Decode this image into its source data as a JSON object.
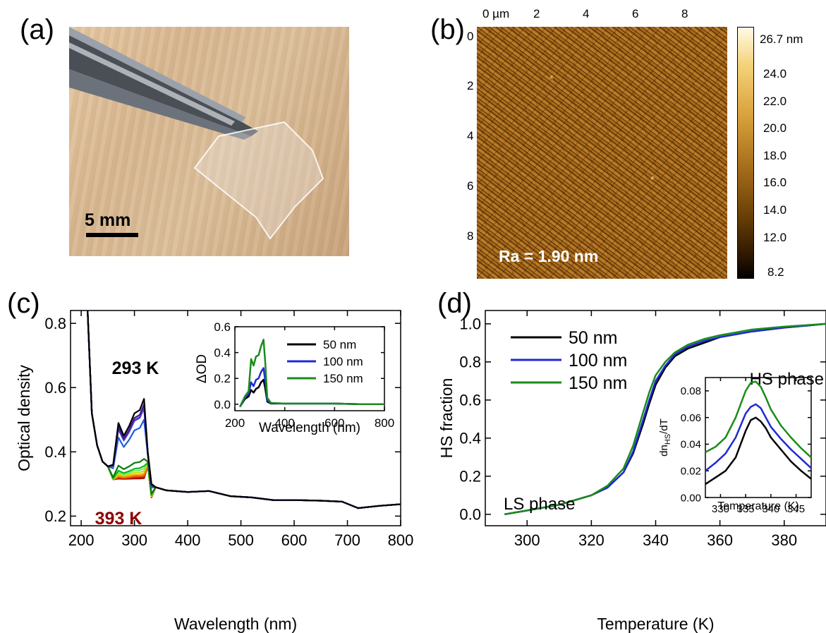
{
  "panels": {
    "a": "(a)",
    "b": "(b)",
    "c": "(c)",
    "d": "(d)"
  },
  "photo": {
    "scale_bar": "5 mm"
  },
  "afm": {
    "x_ticks": [
      "0 µm",
      "2",
      "4",
      "6",
      "8"
    ],
    "y_ticks": [
      "0",
      "2",
      "4",
      "6",
      "8"
    ],
    "colorbar_ticks": [
      "26.7 nm",
      "24.0",
      "22.0",
      "20.0",
      "18.0",
      "16.0",
      "14.0",
      "12.0",
      "8.2"
    ],
    "roughness": "Ra = 1.90 nm"
  },
  "chart_data": [
    {
      "type": "line",
      "panel": "c",
      "xlabel": "Wavelength (nm)",
      "ylabel": "Optical density",
      "xlim": [
        180,
        800
      ],
      "ylim": [
        0.17,
        0.84
      ],
      "x_ticks": [
        200,
        300,
        400,
        500,
        600,
        700,
        800
      ],
      "y_ticks": [
        0.2,
        0.4,
        0.6,
        0.8
      ],
      "annotations": [
        "293 K",
        "393 K"
      ],
      "colors": [
        "#000000",
        "#3b1a8c",
        "#6a3fd0",
        "#1f2ad6",
        "#1a5fe0",
        "#0c7a0c",
        "#18b418",
        "#6ef06e",
        "#c9e000",
        "#f0a000",
        "#e85a00",
        "#c81e00",
        "#8b0000"
      ],
      "series_peak_od": [
        0.575,
        0.555,
        0.545,
        0.54,
        0.5,
        0.37,
        0.345,
        0.335,
        0.325,
        0.315,
        0.307,
        0.3,
        0.295
      ],
      "x": [
        212,
        220,
        230,
        240,
        250,
        260,
        270,
        280,
        290,
        300,
        310,
        318,
        325,
        332,
        340,
        360,
        400,
        440,
        480,
        520,
        560,
        600,
        650,
        690,
        720,
        760,
        800
      ],
      "inset": {
        "type": "line",
        "xlabel": "Wavelength (nm)",
        "ylabel": "ΔOD",
        "xlim": [
          200,
          800
        ],
        "ylim": [
          -0.05,
          0.6
        ],
        "x_ticks": [
          200,
          400,
          600,
          800
        ],
        "y_ticks": [
          0.0,
          0.2,
          0.4,
          0.6
        ],
        "series": [
          {
            "name": "50 nm",
            "color": "#000000",
            "x": [
              220,
              240,
              255,
              265,
              275,
              285,
              295,
              305,
              315,
              322,
              330,
              345,
              400,
              500,
              600,
              700,
              800
            ],
            "values": [
              -0.02,
              0.04,
              0.06,
              0.11,
              0.09,
              0.12,
              0.13,
              0.17,
              0.19,
              0.12,
              0.02,
              0.005,
              0.005,
              0.005,
              0.005,
              0.0,
              0.0
            ]
          },
          {
            "name": "100 nm",
            "color": "#1f2ad6",
            "x": [
              220,
              240,
              255,
              265,
              275,
              285,
              295,
              305,
              315,
              322,
              330,
              345,
              400,
              500,
              600,
              700,
              800
            ],
            "values": [
              -0.02,
              0.05,
              0.08,
              0.17,
              0.14,
              0.19,
              0.2,
              0.25,
              0.28,
              0.18,
              0.03,
              0.008,
              0.005,
              0.005,
              0.005,
              0.0,
              0.0
            ]
          },
          {
            "name": "150 nm",
            "color": "#1a8c1a",
            "x": [
              220,
              240,
              255,
              265,
              275,
              285,
              295,
              305,
              315,
              322,
              330,
              345,
              400,
              500,
              600,
              700,
              800
            ],
            "values": [
              -0.02,
              0.06,
              0.1,
              0.35,
              0.3,
              0.37,
              0.38,
              0.45,
              0.5,
              0.32,
              0.05,
              0.01,
              0.005,
              0.005,
              0.005,
              0.0,
              0.0
            ]
          }
        ]
      }
    },
    {
      "type": "line",
      "panel": "d",
      "xlabel": "Temperature (K)",
      "ylabel": "HS fraction",
      "xlim": [
        287,
        393
      ],
      "ylim": [
        -0.06,
        1.07
      ],
      "x_ticks": [
        300,
        320,
        340,
        360,
        380
      ],
      "y_ticks": [
        0.0,
        0.2,
        0.4,
        0.6,
        0.8,
        1.0
      ],
      "annotations": [
        "LS phase",
        "HS phase"
      ],
      "series": [
        {
          "name": "50 nm",
          "color": "#000000",
          "x": [
            293,
            300,
            310,
            320,
            325,
            330,
            333,
            336,
            338,
            340,
            343,
            346,
            350,
            355,
            360,
            370,
            380,
            393
          ],
          "values": [
            0.0,
            0.02,
            0.05,
            0.1,
            0.14,
            0.22,
            0.32,
            0.47,
            0.58,
            0.68,
            0.77,
            0.83,
            0.87,
            0.9,
            0.93,
            0.96,
            0.98,
            1.0
          ]
        },
        {
          "name": "100 nm",
          "color": "#1f2ad6",
          "x": [
            293,
            300,
            310,
            320,
            325,
            330,
            333,
            336,
            338,
            340,
            343,
            346,
            350,
            355,
            360,
            370,
            380,
            393
          ],
          "values": [
            0.0,
            0.02,
            0.05,
            0.1,
            0.14,
            0.22,
            0.33,
            0.49,
            0.6,
            0.7,
            0.78,
            0.84,
            0.88,
            0.91,
            0.93,
            0.96,
            0.98,
            1.0
          ]
        },
        {
          "name": "150 nm",
          "color": "#1a8c1a",
          "x": [
            293,
            300,
            310,
            320,
            325,
            330,
            333,
            336,
            338,
            340,
            343,
            346,
            350,
            355,
            360,
            370,
            380,
            393
          ],
          "values": [
            0.0,
            0.02,
            0.05,
            0.1,
            0.15,
            0.24,
            0.36,
            0.53,
            0.64,
            0.73,
            0.8,
            0.85,
            0.89,
            0.92,
            0.94,
            0.97,
            0.985,
            1.0
          ]
        }
      ],
      "inset": {
        "type": "line",
        "xlabel": "Temperature (K)",
        "ylabel": "dn_HS/dT",
        "ylabel_main": "dn",
        "ylabel_sub": "HS",
        "ylabel_tail": "/dT",
        "xlim": [
          327,
          348
        ],
        "ylim": [
          0.0,
          0.09
        ],
        "x_ticks": [
          330,
          335,
          340,
          345
        ],
        "y_ticks": [
          "0.00",
          "0.02",
          "0.04",
          "0.06",
          "0.08"
        ],
        "series": [
          {
            "name": "50 nm",
            "color": "#000000",
            "x": [
              327,
              329,
              331,
              333,
              334,
              335,
              336,
              337,
              338,
              339,
              340,
              342,
              344,
              346,
              348
            ],
            "values": [
              0.01,
              0.015,
              0.02,
              0.03,
              0.04,
              0.05,
              0.058,
              0.06,
              0.057,
              0.052,
              0.045,
              0.036,
              0.027,
              0.02,
              0.014
            ]
          },
          {
            "name": "100 nm",
            "color": "#1f2ad6",
            "x": [
              327,
              329,
              331,
              333,
              334,
              335,
              336,
              337,
              338,
              339,
              340,
              342,
              344,
              346,
              348
            ],
            "values": [
              0.02,
              0.026,
              0.033,
              0.045,
              0.054,
              0.063,
              0.068,
              0.07,
              0.067,
              0.06,
              0.053,
              0.044,
              0.036,
              0.029,
              0.022
            ]
          },
          {
            "name": "150 nm",
            "color": "#1a8c1a",
            "x": [
              327,
              329,
              331,
              333,
              334,
              335,
              336,
              337,
              338,
              339,
              340,
              342,
              344,
              346,
              348
            ],
            "values": [
              0.034,
              0.038,
              0.045,
              0.06,
              0.07,
              0.08,
              0.086,
              0.087,
              0.083,
              0.075,
              0.066,
              0.054,
              0.045,
              0.037,
              0.03
            ]
          }
        ]
      }
    }
  ]
}
